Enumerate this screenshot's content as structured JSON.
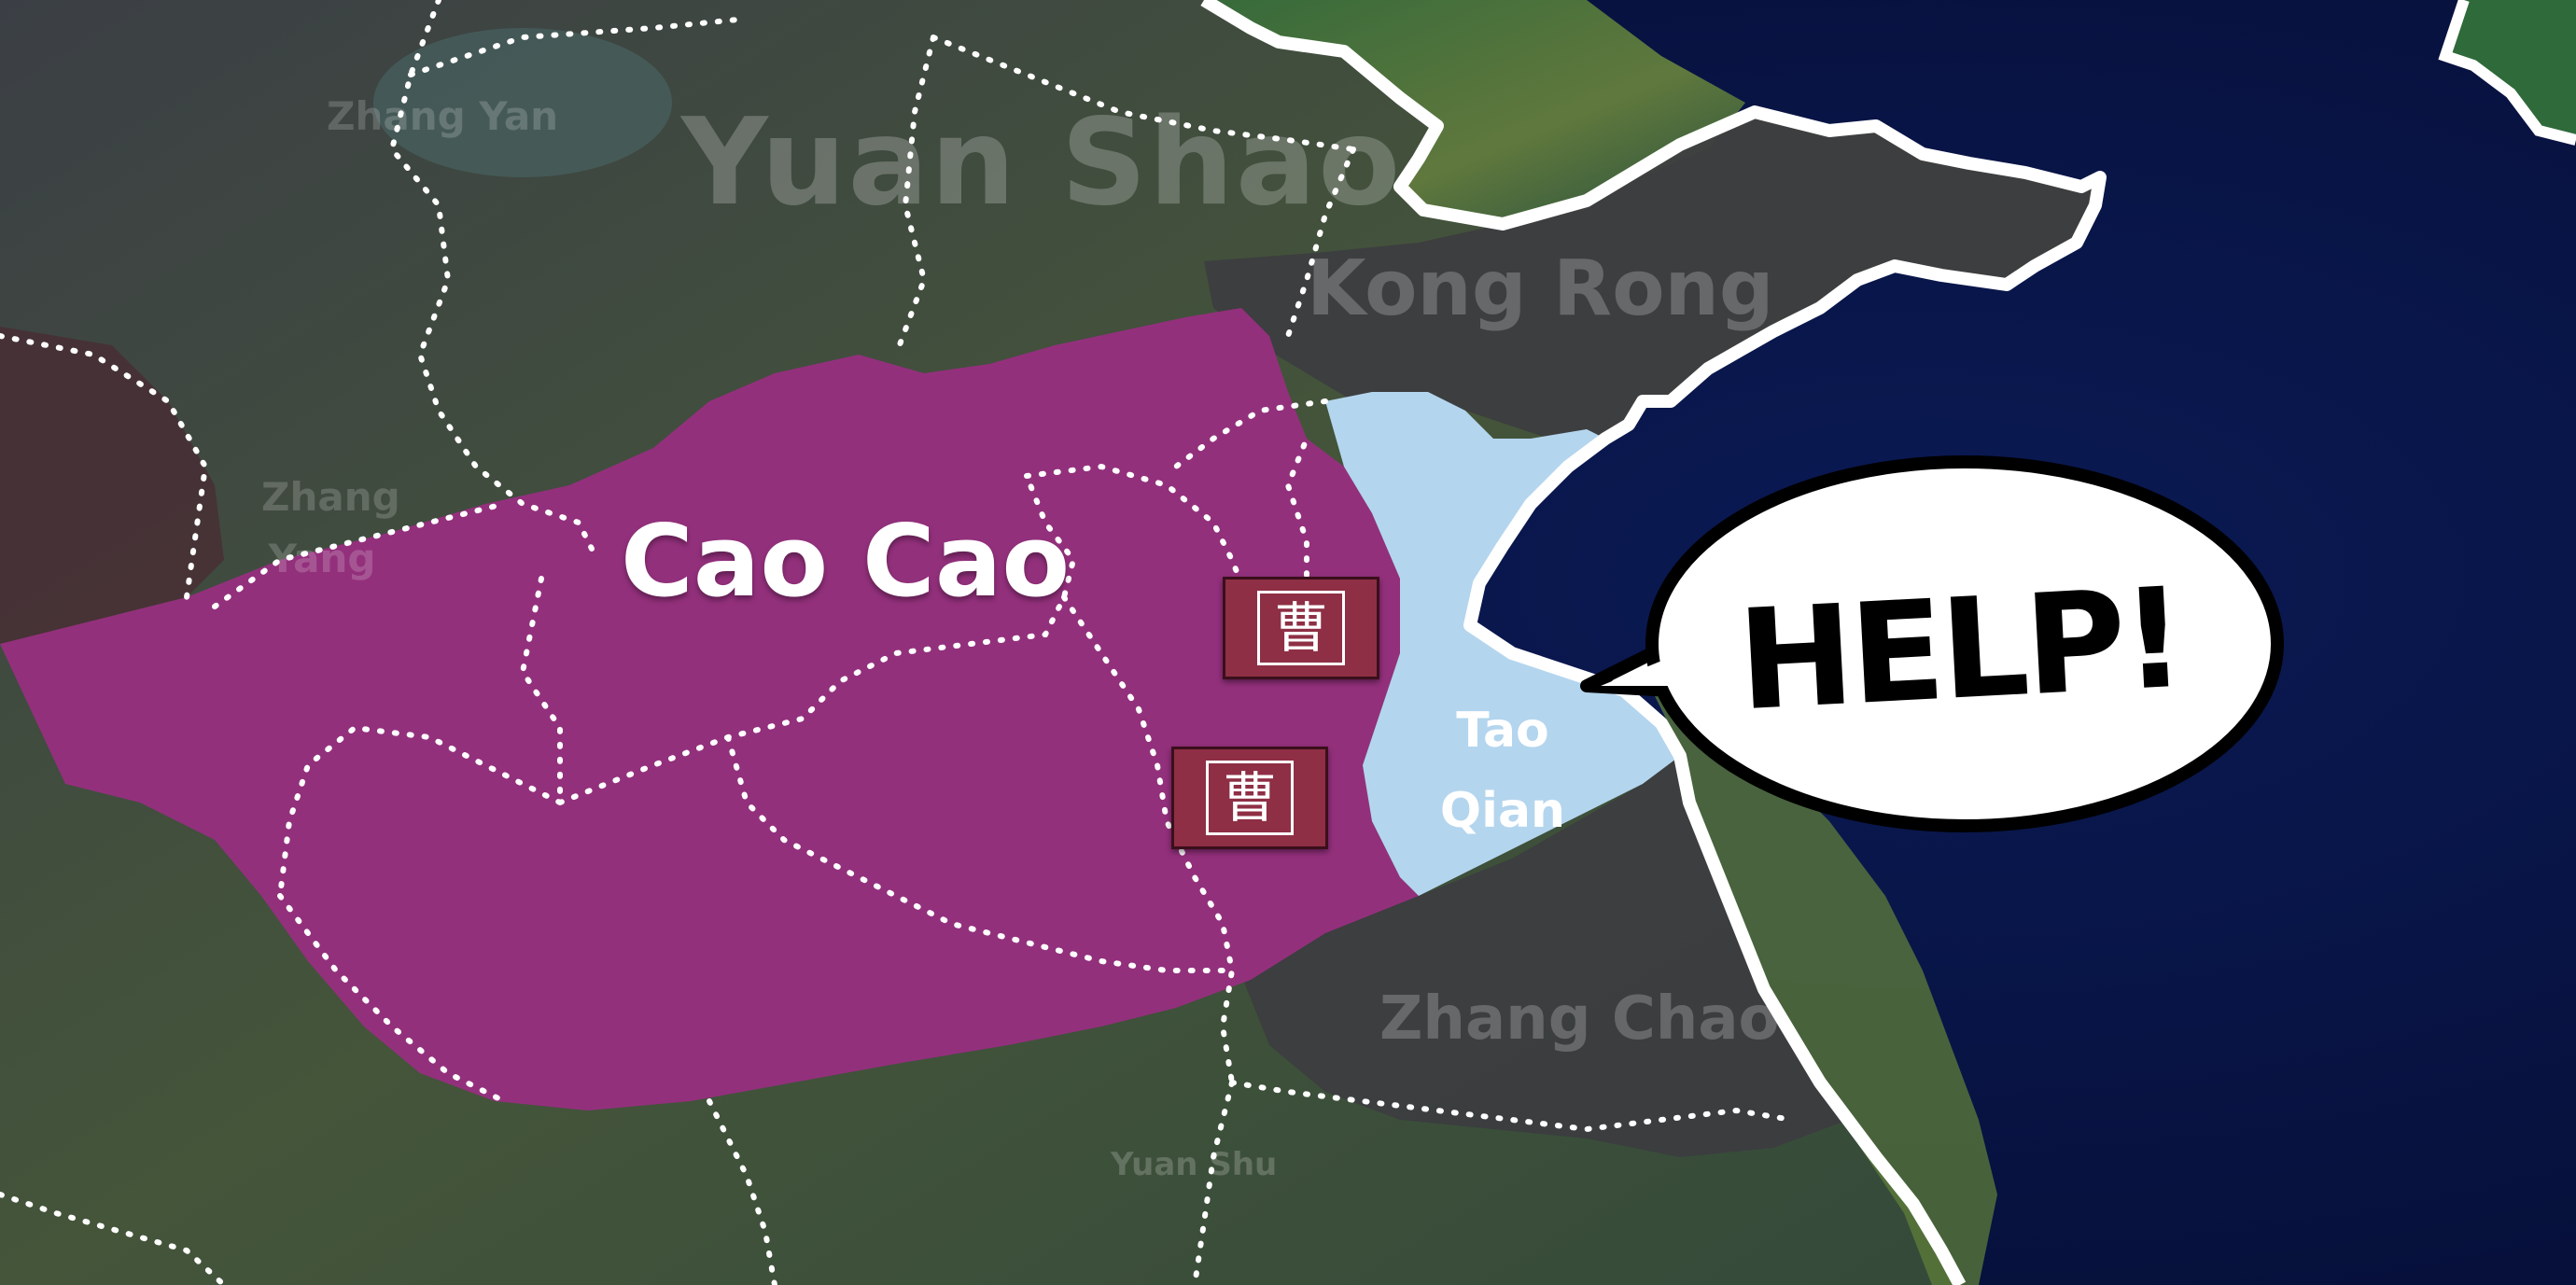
{
  "map": {
    "colors": {
      "sea": "#0a1850",
      "land": "#3a4a3a",
      "cao_cao_territory": "#93307c",
      "tao_qian_territory": "#b4d5ee",
      "kong_rong_region": "#3d3d40",
      "zhang_chao_region": "#3c3c40",
      "coastline": "#ffffff",
      "border_dots": "#ffffff",
      "seal": "#8e2f45"
    },
    "labels": {
      "yuan_shao": "Yuan Shao",
      "kong_rong": "Kong Rong",
      "zhang_yan": "Zhang Yan",
      "zhang_yang": "Zhang Yang",
      "cao_cao": "Cao Cao",
      "tao_qian": "Tao Qian",
      "zhang_chao": "Zhang Chao",
      "yuan_shu": "Yuan Shu"
    },
    "seals": [
      {
        "char": "曹",
        "faction": "Cao Cao"
      },
      {
        "char": "曹",
        "faction": "Cao Cao"
      }
    ],
    "speech_bubble": {
      "text": "HELP!",
      "speaker": "Tao Qian"
    }
  }
}
